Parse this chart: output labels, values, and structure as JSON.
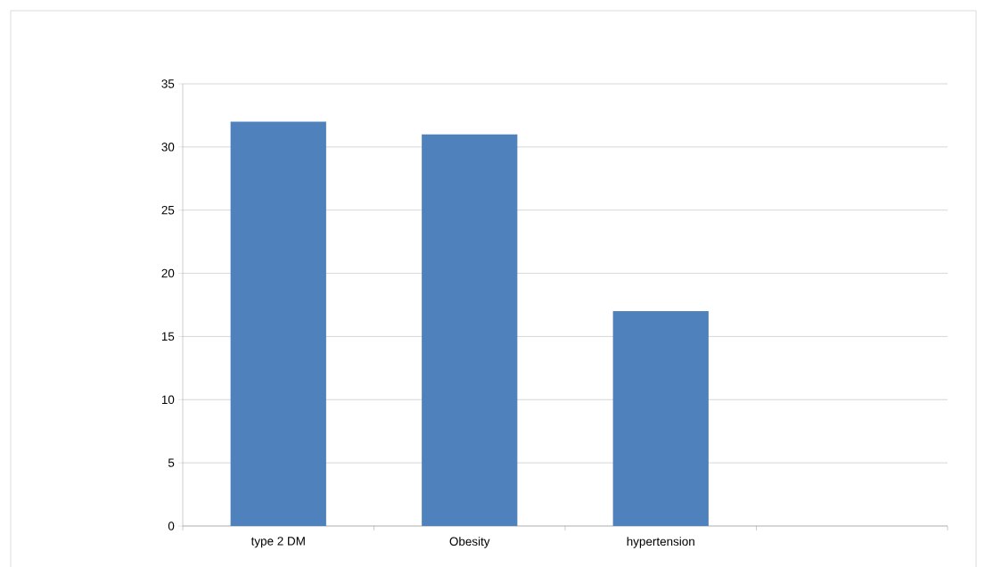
{
  "chart_data": {
    "type": "bar",
    "categories": [
      "type 2 DM",
      "Obesity",
      "hypertension",
      null
    ],
    "values": [
      32,
      31,
      17,
      null
    ],
    "color": "#4f81bd",
    "ylim": [
      0,
      35
    ],
    "yticks": [
      0,
      5,
      10,
      15,
      20,
      25,
      30,
      35
    ],
    "grid": "y"
  }
}
